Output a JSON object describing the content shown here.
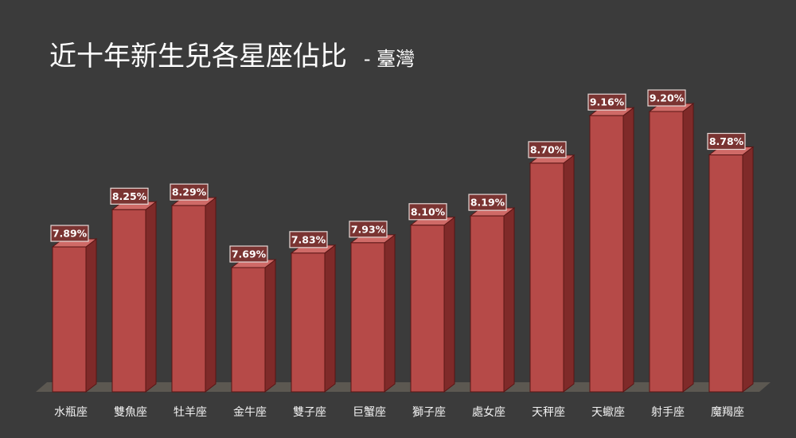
{
  "chart_data": {
    "type": "bar",
    "title": "近十年新生兒各星座佔比",
    "subtitle": "- 臺灣",
    "categories": [
      "水瓶座",
      "雙魚座",
      "牡羊座",
      "金牛座",
      "雙子座",
      "巨蟹座",
      "獅子座",
      "處女座",
      "天秤座",
      "天蠍座",
      "射手座",
      "魔羯座"
    ],
    "values": [
      7.89,
      8.25,
      8.29,
      7.69,
      7.83,
      7.93,
      8.1,
      8.19,
      8.7,
      9.16,
      9.2,
      8.78
    ],
    "data_labels": [
      "7.89%",
      "8.25%",
      "8.29%",
      "7.69%",
      "7.83%",
      "7.93%",
      "8.10%",
      "8.19%",
      "8.70%",
      "9.16%",
      "9.20%",
      "8.78%"
    ],
    "colors": {
      "background": "#3b3b3b",
      "bar_front": "#b64a48",
      "bar_side": "#7f2a29",
      "bar_top": "#cf6a67",
      "bar_outline": "#5a1514",
      "floor": "#5e5a52",
      "label_box_fill": "#7a3432",
      "label_box_border": "#e6d8d6",
      "text": "#ffffff"
    },
    "grid": false,
    "legend": "none"
  }
}
